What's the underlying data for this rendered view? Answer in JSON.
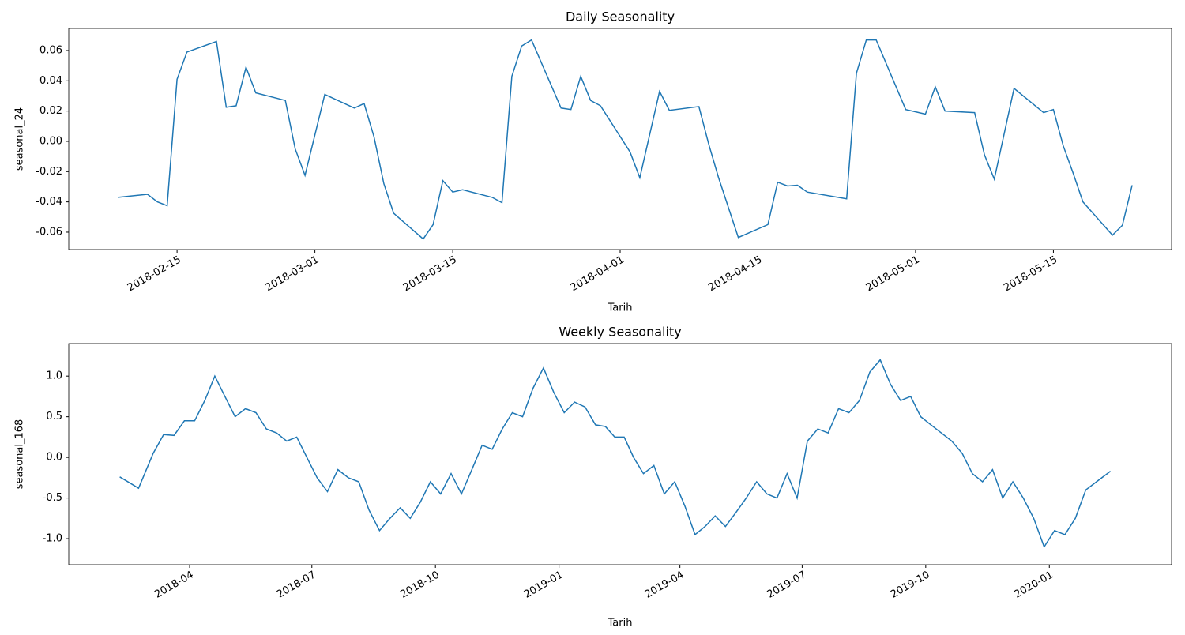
{
  "chart_data": [
    {
      "type": "line",
      "title": "Daily Seasonality",
      "xlabel": "Tarih",
      "ylabel": "seasonal_24",
      "color": "#1f77b4",
      "x": [
        "2018-02-09",
        "2018-02-12",
        "2018-02-13",
        "2018-02-14",
        "2018-02-15",
        "2018-02-16",
        "2018-02-19",
        "2018-02-20",
        "2018-02-21",
        "2018-02-22",
        "2018-02-23",
        "2018-02-26",
        "2018-02-27",
        "2018-02-28",
        "2018-03-02",
        "2018-03-05",
        "2018-03-06",
        "2018-03-07",
        "2018-03-08",
        "2018-03-09",
        "2018-03-12",
        "2018-03-13",
        "2018-03-14",
        "2018-03-15",
        "2018-03-16",
        "2018-03-19",
        "2018-03-20",
        "2018-03-21",
        "2018-03-22",
        "2018-03-23",
        "2018-03-26",
        "2018-03-27",
        "2018-03-28",
        "2018-03-29",
        "2018-03-30",
        "2018-04-02",
        "2018-04-03",
        "2018-04-05",
        "2018-04-06",
        "2018-04-09",
        "2018-04-10",
        "2018-04-11",
        "2018-04-13",
        "2018-04-16",
        "2018-04-17",
        "2018-04-18",
        "2018-04-19",
        "2018-04-20",
        "2018-04-24",
        "2018-04-25",
        "2018-04-26",
        "2018-04-27",
        "2018-04-30",
        "2018-05-02",
        "2018-05-03",
        "2018-05-04",
        "2018-05-07",
        "2018-05-08",
        "2018-05-09",
        "2018-05-11",
        "2018-05-14",
        "2018-05-15",
        "2018-05-16",
        "2018-05-17",
        "2018-05-18",
        "2018-05-21",
        "2018-05-22",
        "2018-05-23"
      ],
      "values": [
        -0.037,
        -0.035,
        -0.04,
        -0.0425,
        0.041,
        0.059,
        0.066,
        0.0225,
        0.0235,
        0.049,
        0.032,
        0.027,
        -0.005,
        -0.0225,
        0.031,
        0.022,
        0.025,
        0.003,
        -0.028,
        -0.0475,
        -0.0645,
        -0.055,
        -0.026,
        -0.0335,
        -0.032,
        -0.037,
        -0.0405,
        0.043,
        0.063,
        0.067,
        0.022,
        0.021,
        0.043,
        0.027,
        0.0235,
        -0.007,
        -0.024,
        0.033,
        0.0205,
        0.023,
        -0.002,
        -0.024,
        -0.0635,
        -0.055,
        -0.027,
        -0.0295,
        -0.029,
        -0.0335,
        -0.038,
        0.045,
        0.067,
        0.067,
        0.021,
        0.018,
        0.036,
        0.02,
        0.019,
        -0.009,
        -0.025,
        0.035,
        0.019,
        0.021,
        -0.003,
        -0.021,
        -0.04,
        -0.062,
        -0.0555,
        -0.029
      ],
      "xlim": [
        "2018-02-04",
        "2018-05-27"
      ],
      "xticks": [
        "2018-02-15",
        "2018-03-01",
        "2018-03-15",
        "2018-04-01",
        "2018-04-15",
        "2018-05-01",
        "2018-05-15"
      ],
      "ylim": [
        -0.0715,
        0.0746
      ],
      "yticks": [
        -0.06,
        -0.04,
        -0.02,
        {
          "value": 0,
          "label": "0.00"
        },
        0.02,
        0.04,
        0.06
      ]
    },
    {
      "type": "line",
      "title": "Weekly Seasonality",
      "xlabel": "Tarih",
      "ylabel": "seasonal_168",
      "color": "#1f77b4",
      "x": [
        "2018-02",
        "2018-02",
        "2018-03",
        "2018-03",
        "2018-03",
        "2018-03",
        "2018-04",
        "2018-04",
        "2018-04",
        "2018-04",
        "2018-05",
        "2018-05",
        "2018-05",
        "2018-05",
        "2018-06",
        "2018-06",
        "2018-06",
        "2018-06",
        "2018-07",
        "2018-07",
        "2018-07",
        "2018-07",
        "2018-08",
        "2018-08",
        "2018-08",
        "2018-08",
        "2018-09",
        "2018-09",
        "2018-09",
        "2018-09",
        "2018-10",
        "2018-10",
        "2018-10",
        "2018-10",
        "2018-11",
        "2018-11",
        "2018-11",
        "2018-11",
        "2018-12",
        "2018-12",
        "2018-12",
        "2018-12",
        "2019-01",
        "2019-01",
        "2019-01",
        "2019-01",
        "2019-02",
        "2019-02",
        "2019-02",
        "2019-02",
        "2019-03",
        "2019-03",
        "2019-03",
        "2019-03",
        "2019-04",
        "2019-04",
        "2019-04",
        "2019-04",
        "2019-05",
        "2019-05",
        "2019-05",
        "2019-05",
        "2019-06",
        "2019-06",
        "2019-06",
        "2019-06",
        "2019-07",
        "2019-07",
        "2019-07",
        "2019-07",
        "2019-08",
        "2019-08",
        "2019-08",
        "2019-08",
        "2019-09",
        "2019-09",
        "2019-09",
        "2019-09",
        "2019-10",
        "2019-10",
        "2019-10",
        "2019-10",
        "2019-11",
        "2019-11",
        "2019-11",
        "2019-11",
        "2019-12",
        "2019-12",
        "2019-12",
        "2019-12",
        "2020-01",
        "2020-01",
        "2020-01",
        "2020-01",
        "2020-02"
      ],
      "values": [
        -0.24,
        -0.38,
        0.05,
        0.28,
        0.27,
        0.45,
        0.45,
        0.7,
        1.0,
        0.75,
        0.5,
        0.6,
        0.55,
        0.35,
        0.3,
        0.2,
        0.25,
        0.0,
        -0.25,
        -0.42,
        -0.15,
        -0.25,
        -0.3,
        -0.65,
        -0.9,
        -0.75,
        -0.62,
        -0.75,
        -0.55,
        -0.3,
        -0.45,
        -0.2,
        -0.45,
        -0.15,
        0.15,
        0.1,
        0.35,
        0.55,
        0.5,
        0.85,
        1.1,
        0.8,
        0.55,
        0.68,
        0.62,
        0.4,
        0.38,
        0.25,
        0.25,
        0.0,
        -0.2,
        -0.1,
        -0.45,
        -0.3,
        -0.6,
        -0.95,
        -0.85,
        -0.72,
        -0.85,
        -0.68,
        -0.5,
        -0.3,
        -0.45,
        -0.5,
        -0.2,
        -0.5,
        0.2,
        0.35,
        0.3,
        0.6,
        0.55,
        0.7,
        1.05,
        1.2,
        0.9,
        0.7,
        0.75,
        0.5,
        0.4,
        0.3,
        0.2,
        0.05,
        -0.2,
        -0.3,
        -0.15,
        -0.5,
        -0.3,
        -0.5,
        -0.75,
        -1.1,
        -0.9,
        -0.95,
        -0.75,
        -0.4,
        -0.17
      ],
      "xlim": [
        "2018-01",
        "2020-04"
      ],
      "xticks": [
        "2018-04",
        "2018-07",
        "2018-10",
        "2019-01",
        "2019-04",
        "2019-07",
        "2019-10",
        "2020-01"
      ],
      "ylim": [
        -1.32,
        1.4
      ],
      "yticks": [
        {
          "value": -1,
          "label": "-1.0"
        },
        -0.5,
        {
          "value": 0,
          "label": "0.0"
        },
        0.5,
        {
          "value": 1,
          "label": "1.0"
        }
      ]
    }
  ]
}
